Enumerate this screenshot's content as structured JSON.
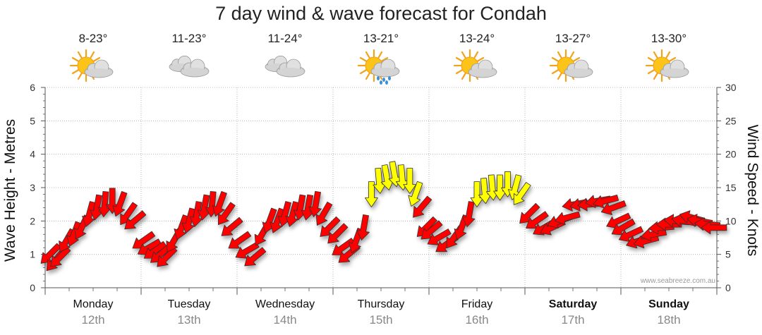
{
  "title": "7 day wind & wave forecast for Condah",
  "credit": "www.seabreeze.com.au",
  "colors": {
    "light_wind": "#ffff00",
    "strong_wind": "#ff0000",
    "outline": "#333333",
    "grid": "#aaaaaa"
  },
  "chart_data": {
    "type": "line",
    "title": "7 day wind & wave forecast for Condah",
    "ylabel_left": "Wave Height - Metres",
    "ylabel_right": "Wind Speed - Knots",
    "ylim_left": [
      0,
      6
    ],
    "yticks_left": [
      "0",
      "1",
      "2",
      "3",
      "4",
      "5",
      "6"
    ],
    "ylim_right": [
      0,
      30
    ],
    "yticks_right": [
      "0",
      "5",
      "10",
      "15",
      "20",
      "25",
      "30"
    ],
    "grid": true,
    "days": [
      {
        "name": "Monday",
        "date": "12th",
        "temp": "8-23°",
        "icon": "partly-cloudy-icon",
        "bold": false
      },
      {
        "name": "Tuesday",
        "date": "13th",
        "temp": "11-23°",
        "icon": "cloudy-icon",
        "bold": false
      },
      {
        "name": "Wednesday",
        "date": "14th",
        "temp": "11-24°",
        "icon": "cloudy-icon",
        "bold": false
      },
      {
        "name": "Thursday",
        "date": "15th",
        "temp": "13-21°",
        "icon": "showers-icon",
        "bold": false
      },
      {
        "name": "Friday",
        "date": "16th",
        "temp": "13-24°",
        "icon": "partly-cloudy-icon",
        "bold": false
      },
      {
        "name": "Saturday",
        "date": "17th",
        "temp": "13-27°",
        "icon": "partly-cloudy-icon",
        "bold": true
      },
      {
        "name": "Sunday",
        "date": "18th",
        "temp": "13-30°",
        "icon": "partly-cloudy-icon",
        "bold": true
      }
    ],
    "wind_series": {
      "x_day": [
        0.05,
        0.1,
        0.15,
        0.22,
        0.3,
        0.38,
        0.46,
        0.54,
        0.62,
        0.7,
        0.78,
        0.86,
        0.93,
        1.02,
        1.08,
        1.14,
        1.2,
        1.26,
        1.34,
        1.42,
        1.5,
        1.58,
        1.66,
        1.74,
        1.82,
        1.88,
        1.94,
        2.02,
        2.1,
        2.18,
        2.26,
        2.34,
        2.42,
        2.5,
        2.58,
        2.66,
        2.74,
        2.82,
        2.9,
        2.96,
        3.04,
        3.1,
        3.16,
        3.24,
        3.32,
        3.4,
        3.48,
        3.56,
        3.64,
        3.72,
        3.8,
        3.86,
        3.92,
        3.97,
        4.02,
        4.1,
        4.18,
        4.26,
        4.34,
        4.42,
        4.5,
        4.58,
        4.66,
        4.74,
        4.82,
        4.9,
        4.96,
        5.04,
        5.12,
        5.2,
        5.28,
        5.36,
        5.44,
        5.52,
        5.6,
        5.68,
        5.76,
        5.84,
        5.92,
        5.97,
        6.02,
        6.1,
        6.18,
        6.26,
        6.34,
        6.42,
        6.5,
        6.58,
        6.66,
        6.74,
        6.82,
        6.9,
        6.97
      ],
      "knots": [
        5,
        4,
        4.5,
        7,
        8,
        9,
        11,
        12,
        12.5,
        13,
        12.5,
        11,
        10,
        7,
        6,
        5.5,
        5,
        4.5,
        7,
        9,
        10,
        11,
        12,
        12.5,
        12.5,
        11,
        9,
        7,
        5.5,
        4.5,
        8,
        10,
        10,
        11,
        11,
        12,
        12,
        12.5,
        11,
        9,
        8,
        6,
        5,
        7,
        9,
        14,
        16,
        16.5,
        17,
        16.5,
        16,
        14,
        12,
        9,
        8.5,
        7.5,
        6.5,
        7.5,
        9,
        11,
        14,
        14.5,
        15,
        15,
        15.5,
        15,
        14,
        11,
        10,
        9,
        9,
        10,
        10.5,
        12.5,
        12.5,
        12.5,
        13,
        13,
        12,
        10,
        9,
        8,
        7,
        7,
        8,
        9,
        9.5,
        10,
        10,
        10.5,
        10,
        9.5,
        9
      ],
      "direction_deg": [
        225,
        220,
        225,
        210,
        200,
        205,
        195,
        190,
        185,
        180,
        200,
        215,
        230,
        235,
        240,
        235,
        230,
        225,
        210,
        200,
        195,
        190,
        190,
        185,
        200,
        215,
        230,
        235,
        240,
        230,
        210,
        200,
        200,
        195,
        195,
        190,
        190,
        190,
        210,
        225,
        225,
        235,
        230,
        200,
        190,
        180,
        175,
        170,
        170,
        175,
        180,
        200,
        220,
        225,
        230,
        240,
        235,
        215,
        200,
        190,
        180,
        175,
        175,
        180,
        180,
        195,
        215,
        225,
        235,
        240,
        245,
        250,
        255,
        260,
        260,
        265,
        260,
        255,
        250,
        245,
        240,
        245,
        250,
        255,
        260,
        265,
        270,
        275,
        280,
        285,
        280,
        275,
        270
      ]
    }
  }
}
